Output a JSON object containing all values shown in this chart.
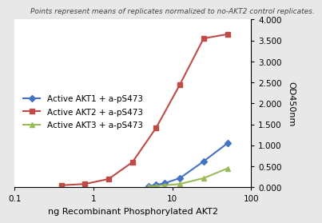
{
  "title_annotation": "Points represent means of replicates normalized to no-AKT2 control replicates.",
  "xlabel": "ng Recombinant Phosphorylated AKT2",
  "ylabel": "OD450nm",
  "xlim": [
    0.1,
    100
  ],
  "ylim": [
    0.0,
    4.0
  ],
  "yticks": [
    0.0,
    0.5,
    1.0,
    1.5,
    2.0,
    2.5,
    3.0,
    3.5,
    4.0
  ],
  "series": [
    {
      "label": "Active AKT1 + a-pS473",
      "color": "#4472C4",
      "marker": "D",
      "x": [
        5.0,
        6.25,
        8.0,
        12.5,
        25.0,
        50.0
      ],
      "y": [
        0.03,
        0.06,
        0.1,
        0.22,
        0.62,
        1.05
      ]
    },
    {
      "label": "Active AKT2 + a-pS473",
      "color": "#BE4B48",
      "marker": "s",
      "x": [
        0.39,
        0.78,
        1.56,
        3.125,
        6.25,
        12.5,
        25.0,
        50.0
      ],
      "y": [
        0.05,
        0.08,
        0.2,
        0.6,
        1.42,
        2.45,
        3.55,
        3.65
      ]
    },
    {
      "label": "Active AKT3 + a-pS473",
      "color": "#9BBB59",
      "marker": "^",
      "x": [
        5.0,
        6.25,
        8.0,
        12.5,
        25.0,
        50.0
      ],
      "y": [
        0.02,
        0.03,
        0.05,
        0.08,
        0.22,
        0.45
      ]
    }
  ],
  "background_color": "#E8E8E8",
  "plot_bg_color": "#FFFFFF",
  "annotation_fontsize": 6.5,
  "legend_fontsize": 7.5,
  "axis_fontsize": 8,
  "tick_fontsize": 7.5
}
